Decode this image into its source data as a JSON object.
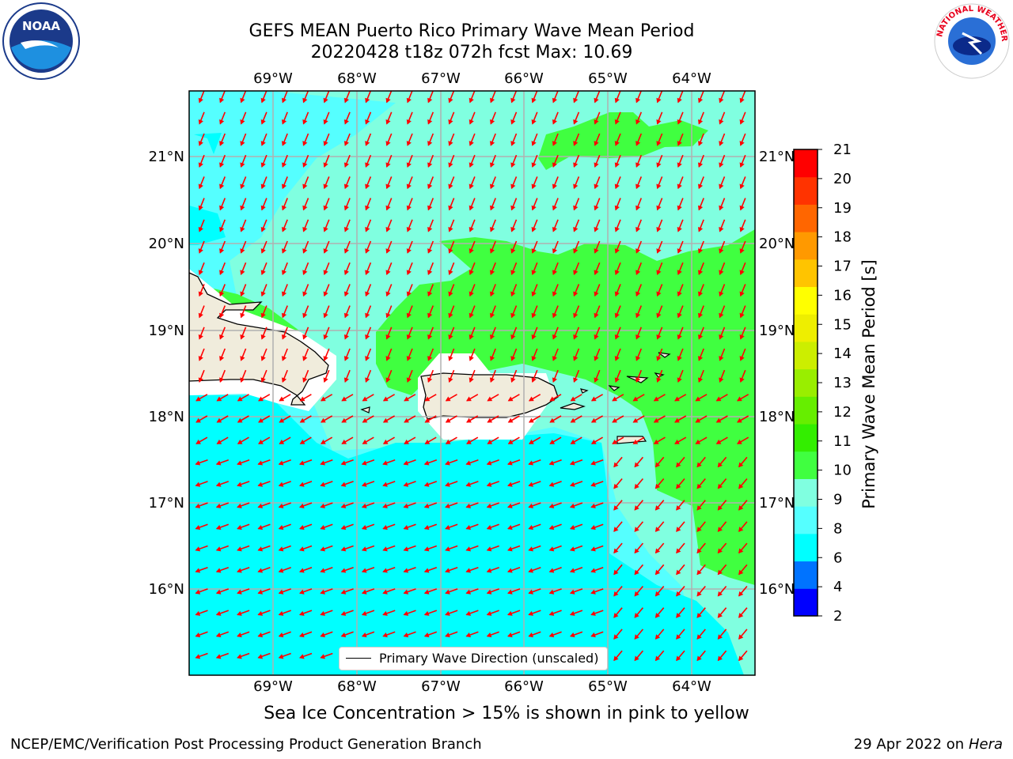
{
  "title": {
    "line1": "GEFS MEAN Puerto Rico Primary Wave Mean Period",
    "line2": "20220428 t18z 072h fcst   Max: 10.69"
  },
  "logos": {
    "left": {
      "icon": "noaa-logo",
      "text": "NOAA"
    },
    "right": {
      "icon": "nws-logo",
      "text": "NATIONAL WEATHER SERVICE"
    }
  },
  "axes": {
    "lon_ticks": [
      "69°W",
      "68°W",
      "67°W",
      "66°W",
      "65°W",
      "64°W"
    ],
    "lat_ticks": [
      "21°N",
      "20°N",
      "19°N",
      "18°N",
      "17°N",
      "16°N"
    ]
  },
  "legend": {
    "label": "Primary Wave Direction (unscaled)",
    "arrow_color": "#ff0000"
  },
  "colorbar": {
    "label": "Primary Wave Mean Period [s]",
    "ticks": [
      "2",
      "4",
      "6",
      "8",
      "9",
      "10",
      "11",
      "12",
      "13",
      "14",
      "15",
      "16",
      "17",
      "18",
      "19",
      "20",
      "21"
    ],
    "colors": [
      "#0000ff",
      "#0073ff",
      "#00ffff",
      "#55ffff",
      "#80ffe0",
      "#40ff40",
      "#33ee00",
      "#66ee00",
      "#99ee00",
      "#ccee00",
      "#eeee00",
      "#ffff00",
      "#ffc400",
      "#ff9900",
      "#ff6600",
      "#ff3300",
      "#ff0000"
    ]
  },
  "map_colors": {
    "land": "#f0ecdc",
    "period_6_8": "#00ffff",
    "period_8_9": "#55ffff",
    "period_9_10": "#80ffe0",
    "period_10_11": "#40ff40",
    "arrows": "#ff0000",
    "grid": "#b0b0b0"
  },
  "sub_note": "Sea Ice Concentration > 15% is shown in pink to yellow",
  "footer": {
    "left": "NCEP/EMC/Verification Post Processing Product Generation Branch",
    "right_date": "29 Apr 2022 on ",
    "right_host": "Hera"
  }
}
